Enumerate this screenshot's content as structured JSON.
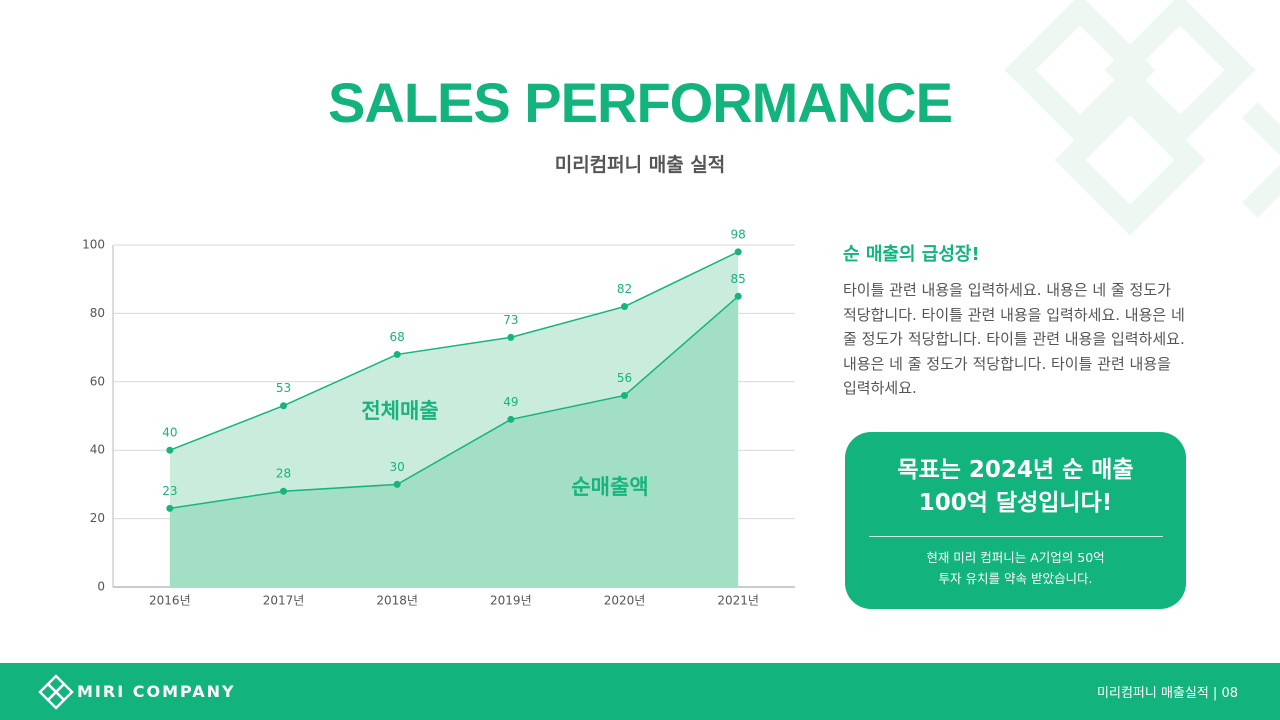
{
  "header": {
    "title": "SALES PERFORMANCE",
    "subtitle": "미리컴퍼니 매출 실적"
  },
  "chart_data": {
    "type": "area",
    "categories": [
      "2016년",
      "2017년",
      "2018년",
      "2019년",
      "2020년",
      "2021년"
    ],
    "series": [
      {
        "name": "전체매출",
        "color": "#16b47e",
        "values": [
          40,
          53,
          68,
          73,
          82,
          98
        ]
      },
      {
        "name": "순매출액",
        "color": "#16b47e",
        "values": [
          23,
          28,
          30,
          49,
          56,
          85
        ]
      }
    ],
    "ylim": [
      0,
      100
    ],
    "yticks": [
      0,
      20,
      40,
      60,
      80,
      100
    ],
    "grid": true
  },
  "panel": {
    "heading": "순 매출의 급성장!",
    "body": "타이틀 관련 내용을 입력하세요. 내용은 네 줄 정도가 적당합니다. 타이틀 관련 내용을 입력하세요. 내용은 네 줄 정도가 적당합니다. 타이틀 관련 내용을 입력하세요. 내용은 네 줄 정도가 적당합니다. 타이틀 관련 내용을 입력하세요.",
    "goal_lines": [
      "목표는 2024년 순 매출",
      "100억 달성입니다!"
    ],
    "note_lines": [
      "현재 미리 컴퍼니는 A기업의 50억",
      "투자 유치를 약속 받았습니다."
    ]
  },
  "footer": {
    "brand": "MIRI COMPANY",
    "page": "미리컴퍼니 매출실적 | 08"
  }
}
